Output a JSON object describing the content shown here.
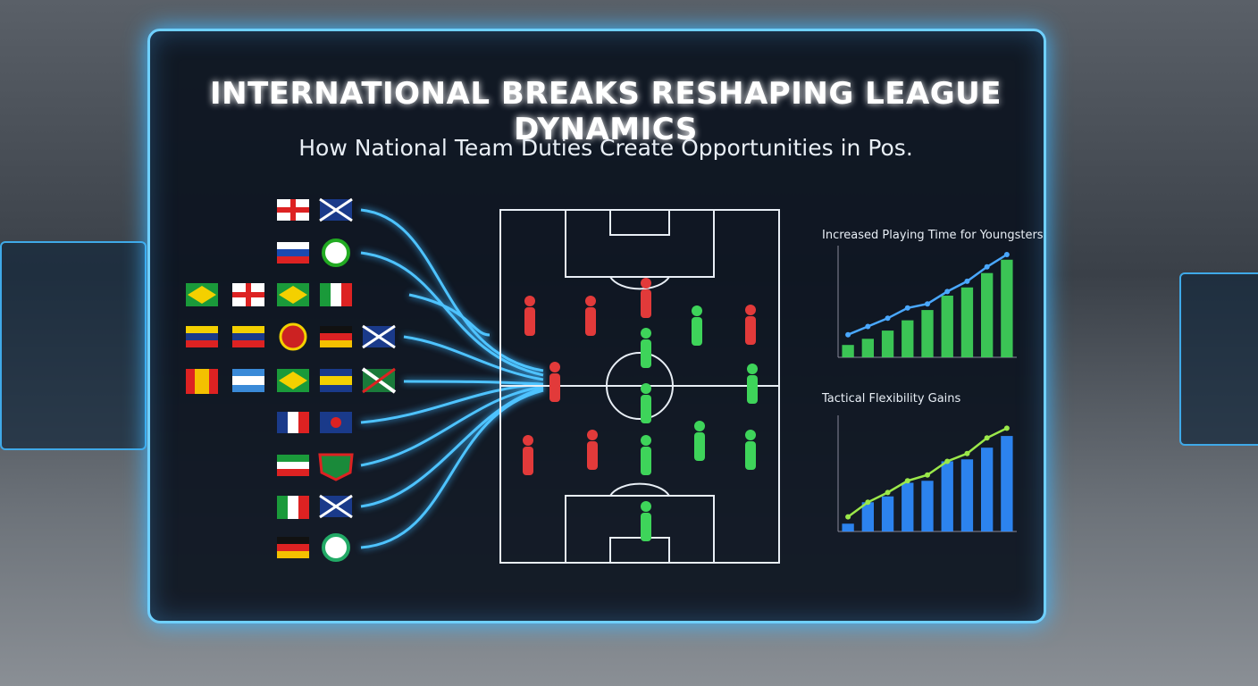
{
  "header": {
    "title": "INTERNATIONAL BREAKS RESHAPING LEAGUE DYNAMICS",
    "subtitle": "How National Team Duties Create Opportunities in Pos."
  },
  "chart_data": [
    {
      "type": "bar",
      "title": "Increased Playing Time for Youngsters",
      "ylim": [
        0,
        100
      ],
      "series": [
        {
          "type": "bar",
          "color": "#3fd45a",
          "values": [
            12,
            18,
            26,
            36,
            46,
            60,
            68,
            82,
            95
          ]
        },
        {
          "type": "line",
          "color": "#4aa8ff",
          "values": [
            22,
            30,
            38,
            48,
            52,
            64,
            74,
            88,
            100
          ]
        }
      ]
    },
    {
      "type": "bar",
      "title": "Tactical Flexibility Gains",
      "ylim": [
        0,
        110
      ],
      "series": [
        {
          "type": "bar",
          "color": "#2f8cff",
          "values": [
            8,
            30,
            36,
            50,
            52,
            72,
            74,
            86,
            98
          ]
        },
        {
          "type": "line",
          "color": "#9be84a",
          "values": [
            15,
            30,
            40,
            52,
            58,
            72,
            80,
            96,
            106
          ]
        }
      ]
    }
  ]
}
